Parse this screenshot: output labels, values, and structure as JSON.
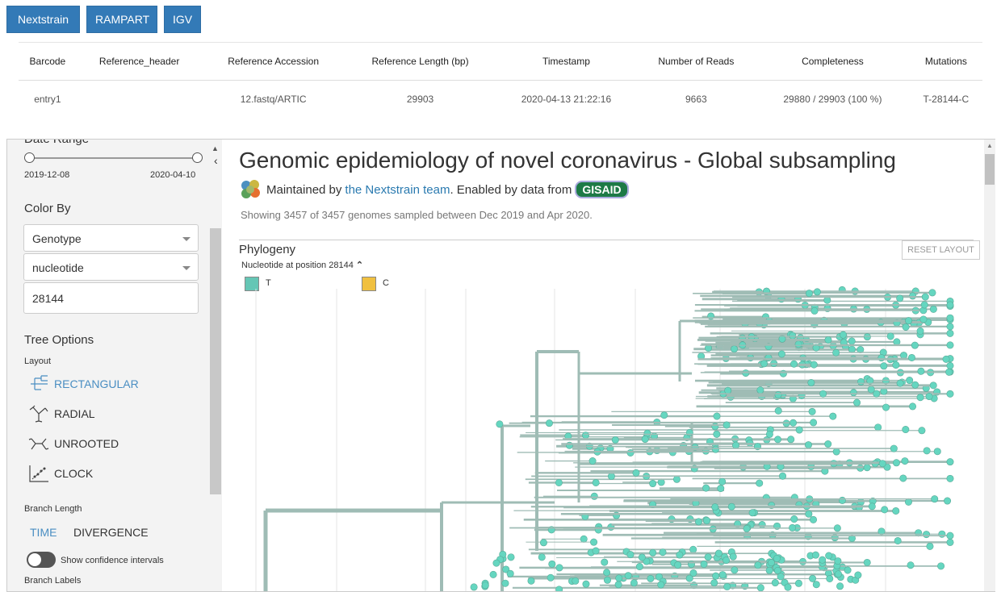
{
  "top_buttons": [
    "Nextstrain",
    "RAMPART",
    "IGV"
  ],
  "summary_table": {
    "headers": [
      "Barcode",
      "Reference_header",
      "Reference Accession",
      "Reference Length (bp)",
      "Timestamp",
      "Number of Reads",
      "Completeness",
      "Mutations"
    ],
    "rows": [
      [
        "entry1",
        "",
        "12.fastq/ARTIC",
        "29903",
        "2020-04-13 21:22:16",
        "9663",
        "29880 / 29903 (100 %)",
        "T-28144-C"
      ]
    ]
  },
  "sidebar": {
    "date_range_label": "Date Range",
    "date_start": "2019-12-08",
    "date_end": "2020-04-10",
    "color_by_label": "Color By",
    "color_by_select": "Genotype",
    "genotype_select": "nucleotide",
    "position_input": "28144",
    "tree_options_label": "Tree Options",
    "layout_label": "Layout",
    "layouts": [
      "RECTANGULAR",
      "RADIAL",
      "UNROOTED",
      "CLOCK"
    ],
    "selected_layout": "RECTANGULAR",
    "branch_length_label": "Branch Length",
    "branch_time": "TIME",
    "branch_divergence": "DIVERGENCE",
    "confidence_label": "Show confidence intervals",
    "branch_labels_label": "Branch Labels"
  },
  "main": {
    "title": "Genomic epidemiology of novel coronavirus - Global subsampling",
    "maintained_prefix": "Maintained by",
    "maintained_link": "the Nextstrain team",
    "enabled_text": ". Enabled by data from",
    "gisaid_logo": "GISAID",
    "showing": "Showing 3457 of 3457 genomes sampled between Dec 2019 and Apr 2020.",
    "phylogeny_label": "Phylogeny",
    "reset_layout": "RESET LAYOUT",
    "legend_title": "Nucleotide at position 28144",
    "legend": [
      {
        "label": "T",
        "color": "#65c6b5"
      },
      {
        "label": "C",
        "color": "#f0c040"
      }
    ]
  },
  "colors": {
    "accent": "#337ab7",
    "branch": "#9fbcb5",
    "tip": "#65d6c0",
    "link": "#2a7ab0"
  }
}
